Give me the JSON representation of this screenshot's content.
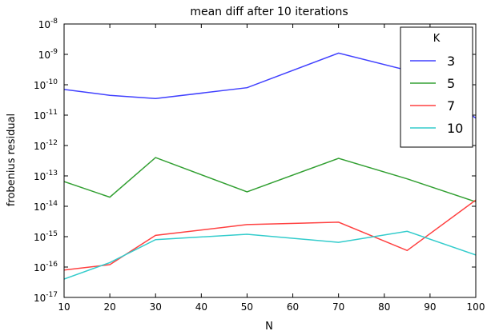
{
  "chart_data": {
    "type": "line",
    "title": "mean diff after 10 iterations",
    "xlabel": "N",
    "ylabel": "frobenius residual",
    "xlim": [
      10,
      100
    ],
    "ylim": [
      1e-17,
      1e-08
    ],
    "yscale": "log",
    "grid": false,
    "legend_title": "K",
    "legend_position": "top-right",
    "x_ticks": [
      "10",
      "20",
      "30",
      "40",
      "50",
      "60",
      "70",
      "80",
      "90",
      "100"
    ],
    "y_ticks": [
      {
        "base": "10",
        "exp": "-17"
      },
      {
        "base": "10",
        "exp": "-16"
      },
      {
        "base": "10",
        "exp": "-15"
      },
      {
        "base": "10",
        "exp": "-14"
      },
      {
        "base": "10",
        "exp": "-13"
      },
      {
        "base": "10",
        "exp": "-12"
      },
      {
        "base": "10",
        "exp": "-11"
      },
      {
        "base": "10",
        "exp": "-10"
      },
      {
        "base": "10",
        "exp": "-9"
      },
      {
        "base": "10",
        "exp": "-8"
      }
    ],
    "series": [
      {
        "name": "3",
        "color": "#4040ff",
        "x": [
          10,
          20,
          30,
          50,
          70,
          85,
          100
        ],
        "y": [
          7e-11,
          4.5e-11,
          3.5e-11,
          8e-11,
          1.1e-09,
          3e-10,
          8e-12
        ]
      },
      {
        "name": "5",
        "color": "#33a033",
        "x": [
          10,
          20,
          30,
          50,
          70,
          85,
          100
        ],
        "y": [
          6.5e-14,
          2e-14,
          4e-13,
          3e-14,
          3.8e-13,
          8e-14,
          1.4e-14
        ]
      },
      {
        "name": "7",
        "color": "#ff4040",
        "x": [
          10,
          20,
          30,
          50,
          70,
          85,
          100
        ],
        "y": [
          8e-17,
          1.2e-16,
          1.1e-15,
          2.5e-15,
          3e-15,
          3.5e-16,
          1.6e-14
        ]
      },
      {
        "name": "10",
        "color": "#33cccc",
        "x": [
          10,
          20,
          30,
          50,
          70,
          85,
          100
        ],
        "y": [
          4e-17,
          1.4e-16,
          8e-16,
          1.2e-15,
          6.5e-16,
          1.5e-15,
          2.5e-16
        ]
      }
    ]
  }
}
